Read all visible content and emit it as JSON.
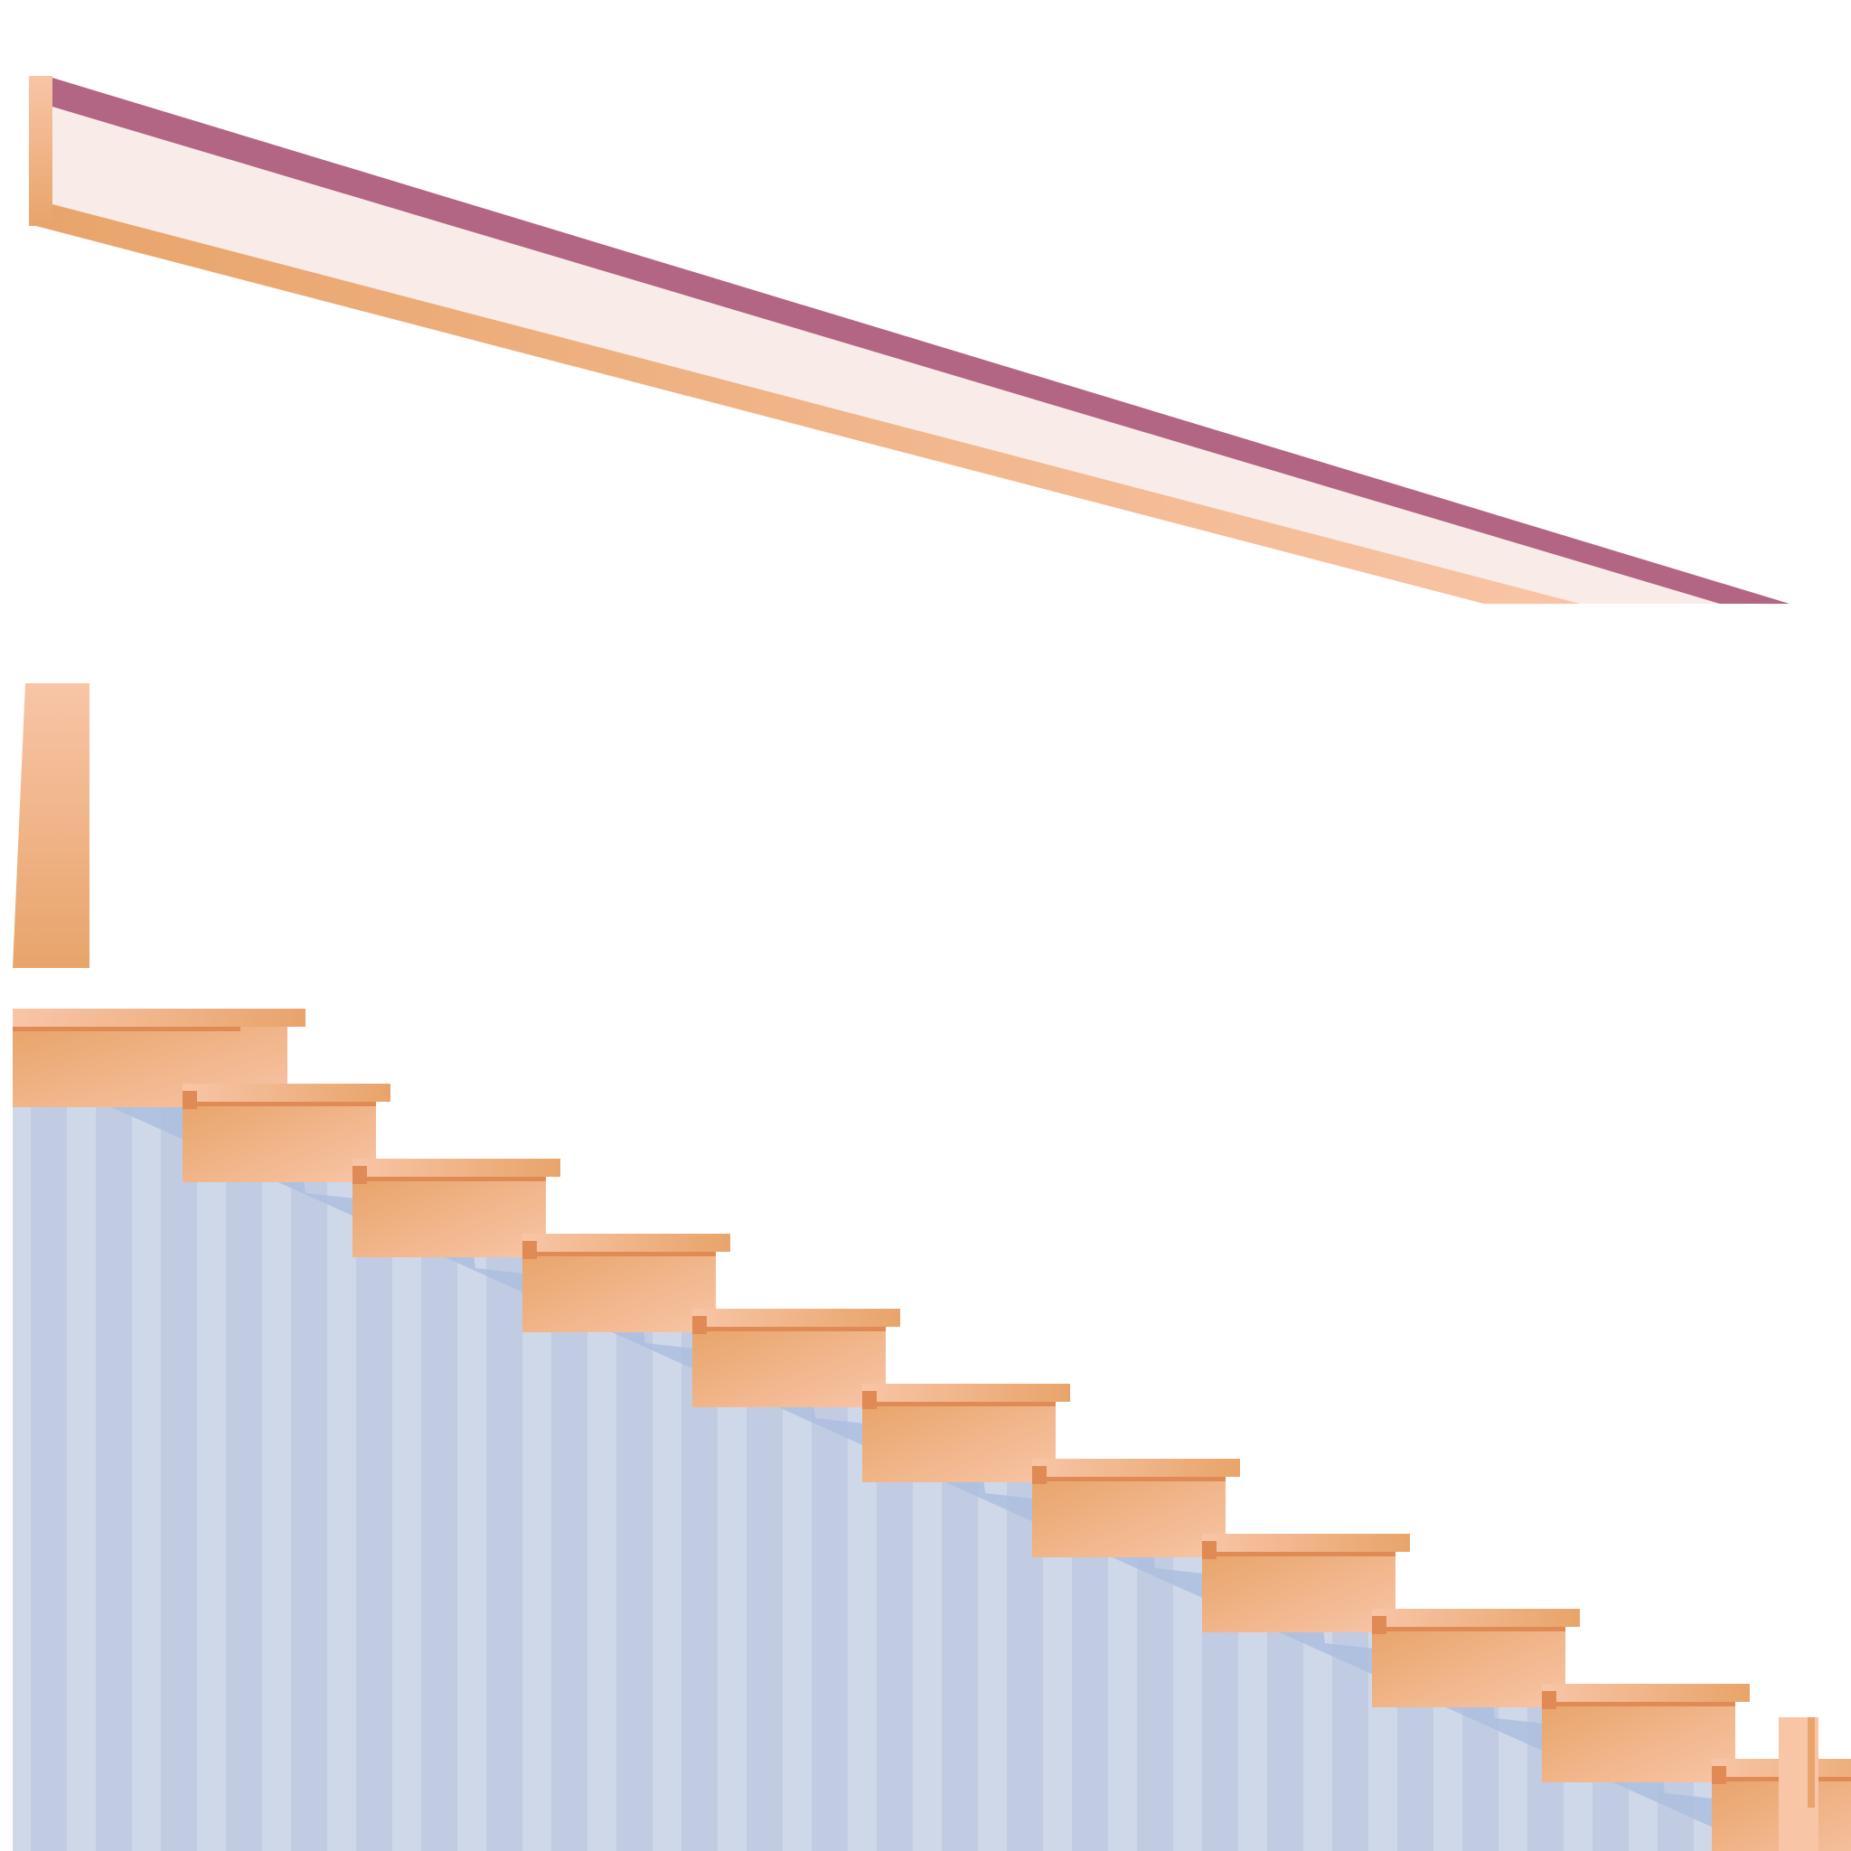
{
  "scene": {
    "step_count": 11
  },
  "colors": {
    "background": "#ffffff",
    "wall_light": "#cfd8e9",
    "wall_stripe": "#c1cce3",
    "wall_shadow": "#adbedf",
    "stair_top": "#e8a46a",
    "stair_light": "#f8c5a7",
    "stair_dark": "#e08a56",
    "stair_edge": "#e8955e",
    "rail_purple": "#b36584",
    "rail_fill": "#f9ebe7",
    "rail_orange": "#e8a46a",
    "rail_peach": "#f8c5a7"
  },
  "icons": {
    "handrail": "handrail-icon",
    "newel_post": "newel-post-icon",
    "staircase": "staircase-icon",
    "wall": "striped-wall-icon"
  }
}
